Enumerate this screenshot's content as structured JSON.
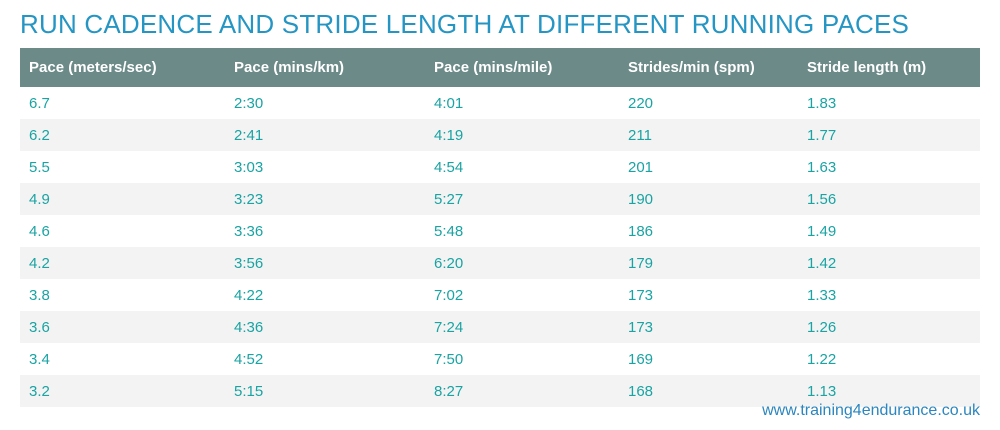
{
  "chart_data": {
    "type": "table",
    "title": "RUN CADENCE AND STRIDE LENGTH AT DIFFERENT RUNNING PACES",
    "columns": [
      "Pace (meters/sec)",
      "Pace (mins/km)",
      "Pace (mins/mile)",
      "Strides/min (spm)",
      "Stride length (m)"
    ],
    "rows": [
      [
        "6.7",
        "2:30",
        "4:01",
        "220",
        "1.83"
      ],
      [
        "6.2",
        "2:41",
        "4:19",
        "211",
        "1.77"
      ],
      [
        "5.5",
        "3:03",
        "4:54",
        "201",
        "1.63"
      ],
      [
        "4.9",
        "3:23",
        "5:27",
        "190",
        "1.56"
      ],
      [
        "4.6",
        "3:36",
        "5:48",
        "186",
        "1.49"
      ],
      [
        "4.2",
        "3:56",
        "6:20",
        "179",
        "1.42"
      ],
      [
        "3.8",
        "4:22",
        "7:02",
        "173",
        "1.33"
      ],
      [
        "3.6",
        "4:36",
        "7:24",
        "173",
        "1.26"
      ],
      [
        "3.4",
        "4:52",
        "7:50",
        "169",
        "1.22"
      ],
      [
        "3.2",
        "5:15",
        "8:27",
        "168",
        "1.13"
      ]
    ],
    "source": "www.training4endurance.co.uk"
  },
  "colors": {
    "title": "#2596c4",
    "header_background": "#6b8a88",
    "header_text": "#ffffff",
    "cell_text": "#1aa3a3",
    "stripe": "#f3f3f3",
    "source_text": "#2a86bf"
  }
}
